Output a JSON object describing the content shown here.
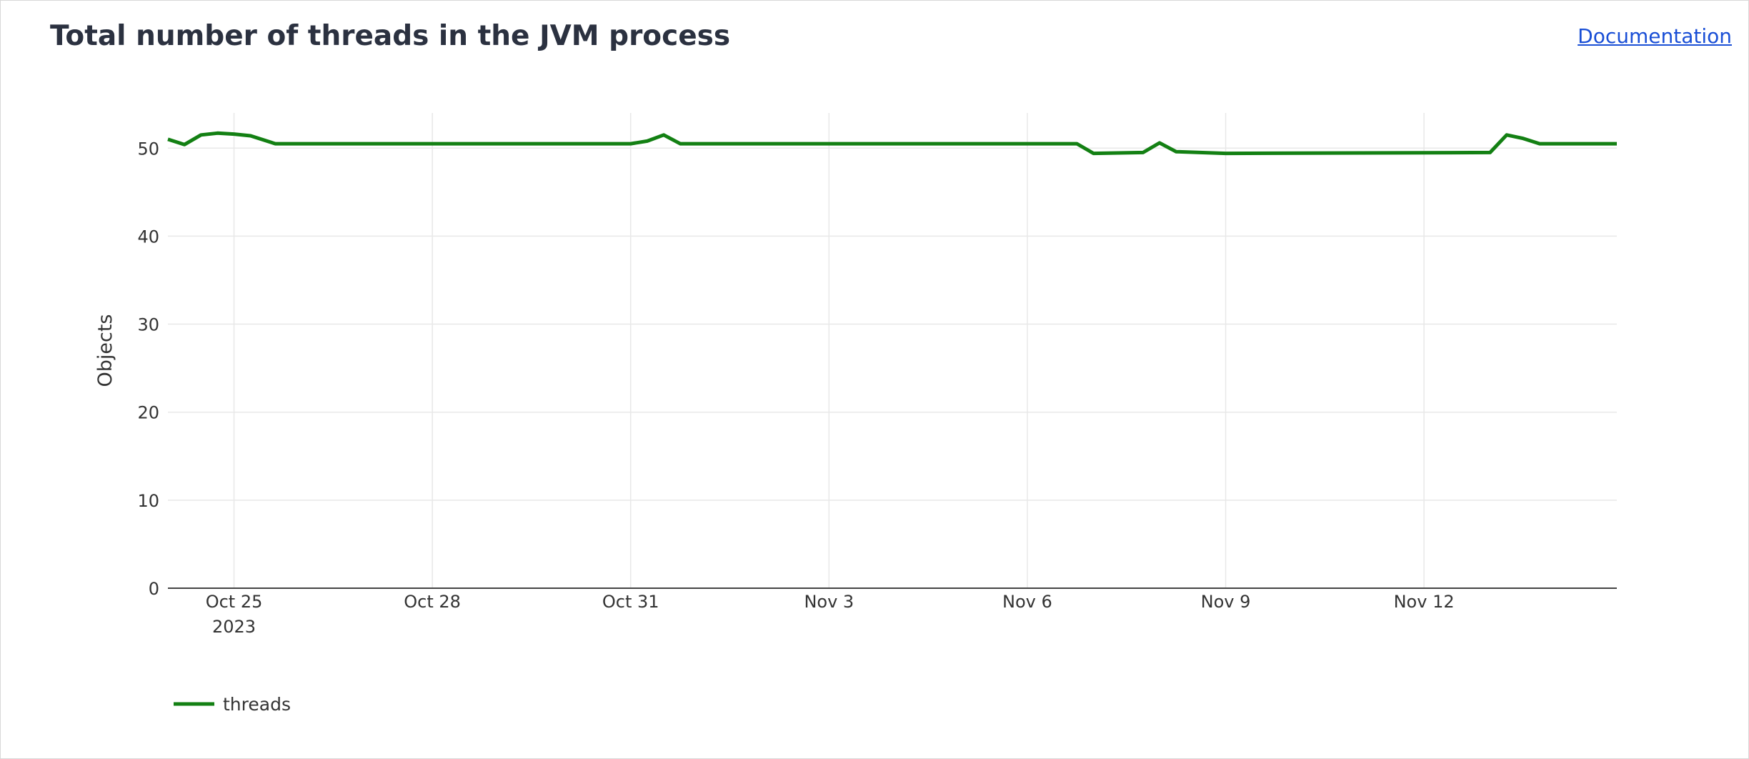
{
  "header": {
    "title": "Total number of threads in the JVM process",
    "doc_link": "Documentation"
  },
  "chart_data": {
    "type": "line",
    "title": "Total number of threads in the JVM process",
    "xlabel": "",
    "ylabel": "Objects",
    "ylim": [
      0,
      54
    ],
    "xlim": [
      "2023-10-24T00:00",
      "2023-11-14T22:00"
    ],
    "y_ticks": [
      0,
      10,
      20,
      30,
      40,
      50
    ],
    "x_ticks": [
      {
        "date": "2023-10-25",
        "label": "Oct 25",
        "sub": "2023"
      },
      {
        "date": "2023-10-28",
        "label": "Oct 28",
        "sub": ""
      },
      {
        "date": "2023-10-31",
        "label": "Oct 31",
        "sub": ""
      },
      {
        "date": "2023-11-03",
        "label": "Nov 3",
        "sub": ""
      },
      {
        "date": "2023-11-06",
        "label": "Nov 6",
        "sub": ""
      },
      {
        "date": "2023-11-09",
        "label": "Nov 9",
        "sub": ""
      },
      {
        "date": "2023-11-12",
        "label": "Nov 12",
        "sub": ""
      }
    ],
    "grid": true,
    "legend_position": "bottom-left",
    "series": [
      {
        "name": "threads",
        "color": "#138013",
        "points": [
          {
            "x": "2023-10-24T00:00",
            "y": 51.0
          },
          {
            "x": "2023-10-24T06:00",
            "y": 50.4
          },
          {
            "x": "2023-10-24T12:00",
            "y": 51.5
          },
          {
            "x": "2023-10-24T18:00",
            "y": 51.7
          },
          {
            "x": "2023-10-25T00:00",
            "y": 51.6
          },
          {
            "x": "2023-10-25T06:00",
            "y": 51.4
          },
          {
            "x": "2023-10-25T15:00",
            "y": 50.5
          },
          {
            "x": "2023-10-31T00:00",
            "y": 50.5
          },
          {
            "x": "2023-10-31T06:00",
            "y": 50.8
          },
          {
            "x": "2023-10-31T12:00",
            "y": 51.5
          },
          {
            "x": "2023-10-31T18:00",
            "y": 50.5
          },
          {
            "x": "2023-11-06T18:00",
            "y": 50.5
          },
          {
            "x": "2023-11-07T00:00",
            "y": 49.4
          },
          {
            "x": "2023-11-07T18:00",
            "y": 49.5
          },
          {
            "x": "2023-11-08T00:00",
            "y": 50.6
          },
          {
            "x": "2023-11-08T06:00",
            "y": 49.6
          },
          {
            "x": "2023-11-09T00:00",
            "y": 49.4
          },
          {
            "x": "2023-11-13T00:00",
            "y": 49.5
          },
          {
            "x": "2023-11-13T06:00",
            "y": 51.5
          },
          {
            "x": "2023-11-13T12:00",
            "y": 51.1
          },
          {
            "x": "2023-11-13T18:00",
            "y": 50.5
          },
          {
            "x": "2023-11-14T22:00",
            "y": 50.5
          }
        ]
      }
    ]
  }
}
